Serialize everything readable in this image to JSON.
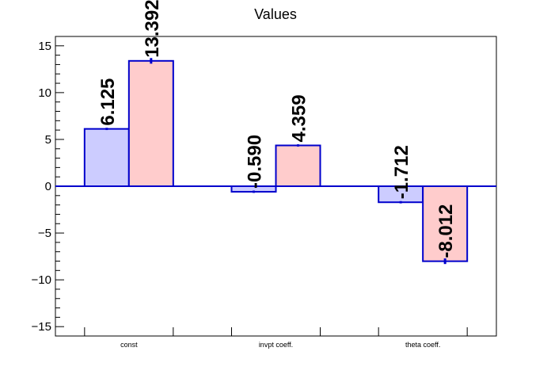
{
  "chart_data": {
    "type": "bar",
    "title": "Values",
    "xlabel": "",
    "ylabel": "",
    "categories": [
      "const",
      "invpt coeff.",
      "theta coeff."
    ],
    "series": [
      {
        "values": [
          6.125,
          -0.59,
          -1.712
        ],
        "labels": [
          "6.125",
          "-0.590",
          "-1.712"
        ],
        "errors": [
          0.12,
          0.12,
          0.12
        ]
      },
      {
        "values": [
          13.392,
          4.359,
          -8.012
        ],
        "labels": [
          "13.392",
          "4.359",
          "-8.012"
        ],
        "errors": [
          0.3,
          0.12,
          0.3
        ]
      }
    ],
    "ylim": [
      -16,
      16
    ],
    "yticks": [
      -15,
      -10,
      -5,
      0,
      5,
      10,
      15
    ],
    "ytick_labels": [
      "−15",
      "−10",
      "−5",
      "0",
      "5",
      "10",
      "15"
    ],
    "grid": false,
    "legend": "none",
    "colors": {
      "series_fills": [
        "#ccccff",
        "#ffcccc"
      ],
      "bar_stroke": "#0000cc",
      "zero_line": "#0000cc",
      "axis": "#000000"
    }
  }
}
